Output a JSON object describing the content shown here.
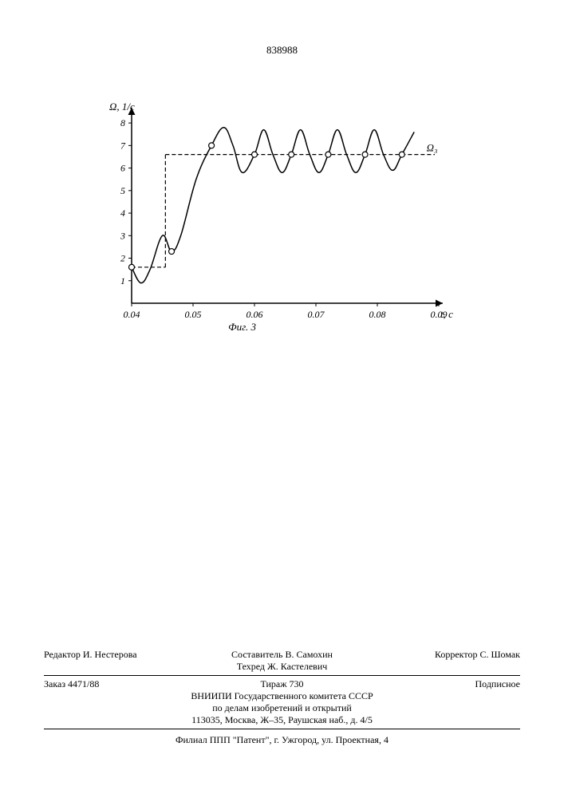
{
  "page_number": "838988",
  "chart": {
    "type": "line",
    "y_axis_label": "Ω, 1/c",
    "x_axis_label": "t, c",
    "series_label": "Ω₃",
    "figure_caption": "Фиг. 3",
    "x_ticks": [
      "0.04",
      "0.05",
      "0.06",
      "0.07",
      "0.08",
      "0.09"
    ],
    "y_ticks": [
      "1",
      "2",
      "3",
      "4",
      "5",
      "6",
      "7",
      "8"
    ],
    "xlim": [
      0.04,
      0.09
    ],
    "ylim": [
      0,
      8.5
    ],
    "colors": {
      "axis": "#000000",
      "curve": "#000000",
      "step_line": "#000000",
      "marker_fill": "#ffffff",
      "marker_stroke": "#000000",
      "background": "#ffffff"
    },
    "line_width": 1.5,
    "step_dash": "5,3",
    "marker_radius": 3.5,
    "step_line": {
      "x_break": 0.0455,
      "y_low": 1.6,
      "y_high": 6.6
    },
    "curve_points": [
      [
        0.04,
        1.6
      ],
      [
        0.0415,
        0.9
      ],
      [
        0.043,
        1.5
      ],
      [
        0.045,
        3.0
      ],
      [
        0.0465,
        2.3
      ],
      [
        0.048,
        3.0
      ],
      [
        0.0505,
        5.5
      ],
      [
        0.053,
        7.0
      ],
      [
        0.055,
        7.8
      ],
      [
        0.0565,
        7.0
      ],
      [
        0.058,
        5.8
      ],
      [
        0.06,
        6.6
      ],
      [
        0.0615,
        7.7
      ],
      [
        0.063,
        6.6
      ],
      [
        0.0645,
        5.8
      ],
      [
        0.066,
        6.6
      ],
      [
        0.0675,
        7.7
      ],
      [
        0.069,
        6.6
      ],
      [
        0.0705,
        5.8
      ],
      [
        0.072,
        6.6
      ],
      [
        0.0735,
        7.7
      ],
      [
        0.075,
        6.6
      ],
      [
        0.0765,
        5.8
      ],
      [
        0.078,
        6.6
      ],
      [
        0.0795,
        7.7
      ],
      [
        0.081,
        6.6
      ],
      [
        0.0825,
        5.9
      ],
      [
        0.084,
        6.6
      ],
      [
        0.086,
        7.6
      ]
    ],
    "markers": [
      [
        0.04,
        1.6
      ],
      [
        0.0465,
        2.3
      ],
      [
        0.053,
        7.0
      ],
      [
        0.06,
        6.6
      ],
      [
        0.066,
        6.6
      ],
      [
        0.072,
        6.6
      ],
      [
        0.078,
        6.6
      ],
      [
        0.084,
        6.6
      ]
    ]
  },
  "footer": {
    "composer": "Составитель В. Самохин",
    "editor": "Редактор И. Нестерова",
    "tech_editor": "Техред Ж. Кастелевич",
    "corrector": "Корректор С. Шомак",
    "order": "Заказ 4471/88",
    "circulation": "Тираж 730",
    "subscription": "Подписное",
    "org_line1": "ВНИИПИ Государственного комитета СССР",
    "org_line2": "по делам изобретений и открытий",
    "org_line3": "113035, Москва, Ж–35, Раушская наб., д. 4/5",
    "branch": "Филиал ППП \"Патент\", г. Ужгород, ул. Проектная, 4"
  }
}
